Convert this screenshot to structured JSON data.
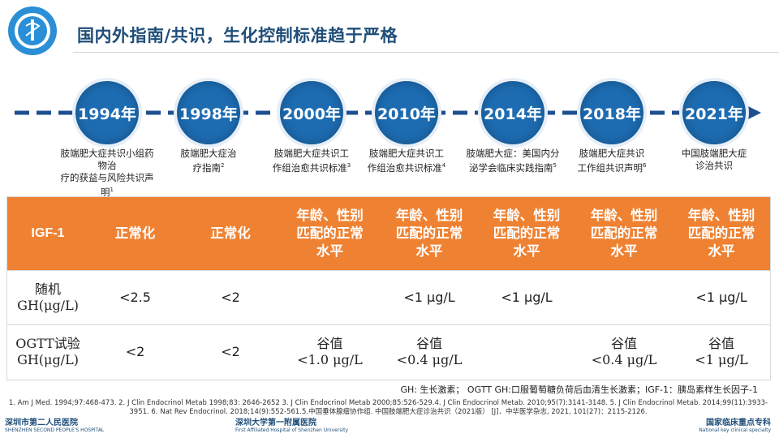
{
  "header": {
    "title": "国内外指南/共识，生化控制标准趋于严格"
  },
  "timeline": {
    "nodes": [
      {
        "year": "1994年",
        "desc_lines": [
          "肢端肥大症共识小组药物治",
          "疗的获益与风险共识声明"
        ],
        "ref": "1"
      },
      {
        "year": "1998年",
        "desc_lines": [
          "肢端肥大症治",
          "疗指南"
        ],
        "ref": "2"
      },
      {
        "year": "2000年",
        "desc_lines": [
          "肢端肥大症共识工",
          "作组治愈共识标准"
        ],
        "ref": "3"
      },
      {
        "year": "2010年",
        "desc_lines": [
          "肢端肥大症共识工",
          "作组治愈共识标准"
        ],
        "ref": "4"
      },
      {
        "year": "2014年",
        "desc_lines": [
          "肢端肥大症：美国内分",
          "泌学会临床实践指南"
        ],
        "ref": "5"
      },
      {
        "year": "2018年",
        "desc_lines": [
          "肢端肥大症共识",
          "工作组共识声明"
        ],
        "ref": "6"
      },
      {
        "year": "2021年",
        "desc_lines": [
          "中国肢端肥大症",
          "诊治共识"
        ],
        "ref": ""
      }
    ],
    "line_color": "#1d4f91",
    "node_color": "#1d6cb2"
  },
  "table": {
    "header_bg": "#ef8232",
    "header": [
      "IGF-1",
      "正常化",
      "正常化",
      "年龄、性别匹配的正常水平",
      "年龄、性别匹配的正常水平",
      "年龄、性别匹配的正常水平",
      "年龄、性别匹配的正常水平",
      "年龄、性别匹配的正常水平"
    ],
    "rows": [
      {
        "label_lines": [
          "随机",
          "GH(μg/L)"
        ],
        "cells": [
          "<2.5",
          "<2",
          "",
          "<1 μg/L",
          "<1 μg/L",
          "",
          "<1 μg/L"
        ]
      },
      {
        "label_lines": [
          "OGTT试验",
          "GH(μg/L)"
        ],
        "cells": [
          "<2",
          "<2",
          "谷值\n<1.0 μg/L",
          "谷值\n<0.4 μg/L",
          "",
          "谷值\n<0.4 μg/L",
          "谷值\n<1 μg/L"
        ]
      }
    ]
  },
  "footnote": "GH: 生长激素；  OGTT GH:口服葡萄糖负荷后血清生长激素；IGF-1：胰岛素样生长因子-1",
  "references": "1. Am J Med. 1994;97:468-473. 2. J Clin Endocrinol Metab 1998;83: 2646-2652 3. J Clin Endocrinol Metab 2000;85:526-529.4. J Clin Endocrinol Metab. 2010;95(7):3141-3148. 5. J Clin Endocrinol Metab. 2014;99(11):3933-3951. 6. Nat Rev Endocrinol. 2018;14(9):552-561.5.中国垂体腺瘤协作组. 中国肢端肥大症诊治共识（2021版） [J]．中华医学杂志, 2021, 101(27)：2115-2126.",
  "footer": {
    "left": "深圳市第二人民医院",
    "left_sub": "SHENZHEN SECOND PEOPLE'S HOSPITAL",
    "mid": "深圳大学第一附属医院",
    "mid_sub": "First Affiliated Hospital of Shenzhen University",
    "right": "国家临床重点专科",
    "right_sub": "National key clinical specialty"
  }
}
